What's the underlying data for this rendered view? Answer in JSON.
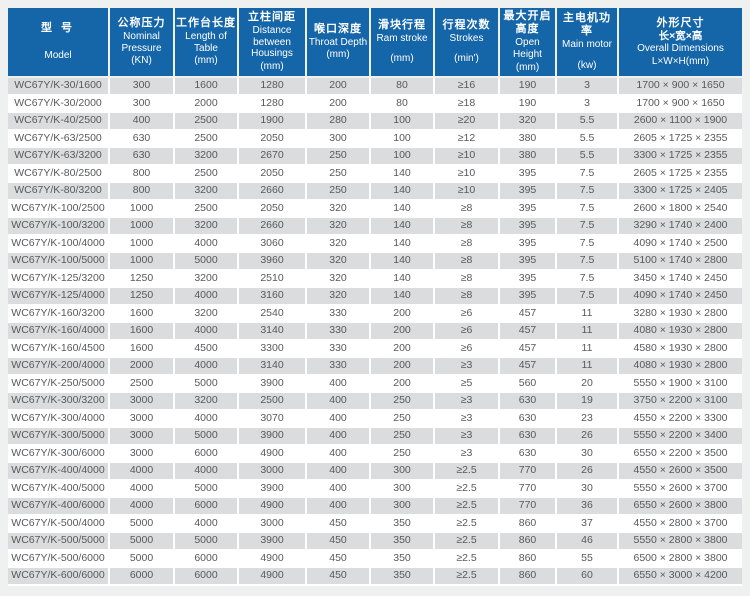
{
  "colors": {
    "header_bg": "#1565a9",
    "header_text": "#ffffff",
    "shaded_row_bg": "#dbdcdd",
    "white_row_bg": "#ffffff",
    "body_text": "#58595b",
    "page_bg": "#eff1f1"
  },
  "table": {
    "columns": [
      {
        "key": "model",
        "zh": "型 号",
        "zh2": "",
        "en": "Model",
        "unit": ""
      },
      {
        "key": "nominal-pressure",
        "zh": "公称压力",
        "zh2": "",
        "en": "Nominal Pressure",
        "unit": "(KN)"
      },
      {
        "key": "table-length",
        "zh": "工作台长度",
        "zh2": "",
        "en": "Length of Table",
        "unit": "(mm)"
      },
      {
        "key": "housing-distance",
        "zh": "立柱间距",
        "zh2": "",
        "en": "Distance between Housings",
        "unit": "(mm)"
      },
      {
        "key": "throat-depth",
        "zh": "喉口深度",
        "zh2": "",
        "en": "Throat Depth",
        "unit": "(mm)"
      },
      {
        "key": "ram-stroke",
        "zh": "滑块行程",
        "zh2": "",
        "en": "Ram stroke",
        "unit": "(mm)"
      },
      {
        "key": "strokes",
        "zh": "行程次数",
        "zh2": "",
        "en": "Strokes",
        "unit": "(min')"
      },
      {
        "key": "open-height",
        "zh": "最大开启高度",
        "zh2": "",
        "en": "Open Height",
        "unit": "(mm)"
      },
      {
        "key": "main-motor",
        "zh": "主电机功率",
        "zh2": "",
        "en": "Main motor",
        "unit": "(kw)"
      },
      {
        "key": "dimensions",
        "zh": "外形尺寸",
        "zh2": "长×宽×高",
        "en": "Overall Dimensions",
        "unit": "L×W×H(mm)"
      }
    ],
    "rows": [
      [
        "WC67Y/K-30/1600",
        "300",
        "1600",
        "1280",
        "200",
        "80",
        "≥16",
        "190",
        "3",
        "1700 × 900 × 1650"
      ],
      [
        "WC67Y/K-30/2000",
        "300",
        "2000",
        "1280",
        "200",
        "80",
        "≥18",
        "190",
        "3",
        "1700 × 900 × 1650"
      ],
      [
        "WC67Y/K-40/2500",
        "400",
        "2500",
        "1900",
        "280",
        "100",
        "≥20",
        "320",
        "5.5",
        "2600 × 1100 × 1900"
      ],
      [
        "WC67Y/K-63/2500",
        "630",
        "2500",
        "2050",
        "300",
        "100",
        "≥12",
        "380",
        "5.5",
        "2605 × 1725 × 2355"
      ],
      [
        "WC67Y/K-63/3200",
        "630",
        "3200",
        "2670",
        "250",
        "100",
        "≥10",
        "380",
        "5.5",
        "3300 × 1725 × 2355"
      ],
      [
        "WC67Y/K-80/2500",
        "800",
        "2500",
        "2050",
        "250",
        "140",
        "≥10",
        "395",
        "7.5",
        "2605 × 1725 × 2355"
      ],
      [
        "WC67Y/K-80/3200",
        "800",
        "3200",
        "2660",
        "250",
        "140",
        "≥10",
        "395",
        "7.5",
        "3300 × 1725 × 2405"
      ],
      [
        "WC67Y/K-100/2500",
        "1000",
        "2500",
        "2050",
        "320",
        "140",
        "≥8",
        "395",
        "7.5",
        "2600 × 1800 × 2540"
      ],
      [
        "WC67Y/K-100/3200",
        "1000",
        "3200",
        "2660",
        "320",
        "140",
        "≥8",
        "395",
        "7.5",
        "3290 × 1740 × 2400"
      ],
      [
        "WC67Y/K-100/4000",
        "1000",
        "4000",
        "3060",
        "320",
        "140",
        "≥8",
        "395",
        "7.5",
        "4090 × 1740 × 2500"
      ],
      [
        "WC67Y/K-100/5000",
        "1000",
        "5000",
        "3960",
        "320",
        "140",
        "≥8",
        "395",
        "7.5",
        "5100 × 1740 × 2800"
      ],
      [
        "WC67Y/K-125/3200",
        "1250",
        "3200",
        "2510",
        "320",
        "140",
        "≥8",
        "395",
        "7.5",
        "3450 × 1740 × 2450"
      ],
      [
        "WC67Y/K-125/4000",
        "1250",
        "4000",
        "3160",
        "320",
        "140",
        "≥8",
        "395",
        "7.5",
        "4090 × 1740 × 2450"
      ],
      [
        "WC67Y/K-160/3200",
        "1600",
        "3200",
        "2540",
        "330",
        "200",
        "≥6",
        "457",
        "11",
        "3280 × 1930 × 2800"
      ],
      [
        "WC67Y/K-160/4000",
        "1600",
        "4000",
        "3140",
        "330",
        "200",
        "≥6",
        "457",
        "11",
        "4080 × 1930 × 2800"
      ],
      [
        "WC67Y/K-160/4500",
        "1600",
        "4500",
        "3300",
        "330",
        "200",
        "≥6",
        "457",
        "11",
        "4580 × 1930 × 2800"
      ],
      [
        "WC67Y/K-200/4000",
        "2000",
        "4000",
        "3140",
        "330",
        "200",
        "≥3",
        "457",
        "11",
        "4080 × 1930 × 2800"
      ],
      [
        "WC67Y/K-250/5000",
        "2500",
        "5000",
        "3900",
        "400",
        "200",
        "≥5",
        "560",
        "20",
        "5550 × 1900 × 3100"
      ],
      [
        "WC67Y/K-300/3200",
        "3000",
        "3200",
        "2500",
        "400",
        "250",
        "≥3",
        "630",
        "19",
        "3750 × 2200 × 3100"
      ],
      [
        "WC67Y/K-300/4000",
        "3000",
        "4000",
        "3070",
        "400",
        "250",
        "≥3",
        "630",
        "23",
        "4550 × 2200 × 3300"
      ],
      [
        "WC67Y/K-300/5000",
        "3000",
        "5000",
        "3900",
        "400",
        "250",
        "≥3",
        "630",
        "26",
        "5550 × 2200 × 3400"
      ],
      [
        "WC67Y/K-300/6000",
        "3000",
        "6000",
        "4900",
        "400",
        "250",
        "≥3",
        "630",
        "30",
        "6550 × 2200 × 3500"
      ],
      [
        "WC67Y/K-400/4000",
        "4000",
        "4000",
        "3000",
        "400",
        "300",
        "≥2.5",
        "770",
        "26",
        "4550 × 2600 × 3500"
      ],
      [
        "WC67Y/K-400/5000",
        "4000",
        "5000",
        "3900",
        "400",
        "300",
        "≥2.5",
        "770",
        "30",
        "5550 × 2600 × 3700"
      ],
      [
        "WC67Y/K-400/6000",
        "4000",
        "6000",
        "4900",
        "400",
        "300",
        "≥2.5",
        "770",
        "36",
        "6550 × 2600 × 3800"
      ],
      [
        "WC67Y/K-500/4000",
        "5000",
        "4000",
        "3000",
        "450",
        "350",
        "≥2.5",
        "860",
        "37",
        "4550 × 2800 × 3700"
      ],
      [
        "WC67Y/K-500/5000",
        "5000",
        "5000",
        "3900",
        "450",
        "350",
        "≥2.5",
        "860",
        "46",
        "5550 × 2800 × 3800"
      ],
      [
        "WC67Y/K-500/6000",
        "5000",
        "6000",
        "4900",
        "450",
        "350",
        "≥2.5",
        "860",
        "55",
        "6500 × 2800 × 3800"
      ],
      [
        "WC67Y/K-600/6000",
        "6000",
        "6000",
        "4900",
        "450",
        "350",
        "≥2.5",
        "860",
        "60",
        "6550 × 3000 × 4200"
      ]
    ]
  }
}
